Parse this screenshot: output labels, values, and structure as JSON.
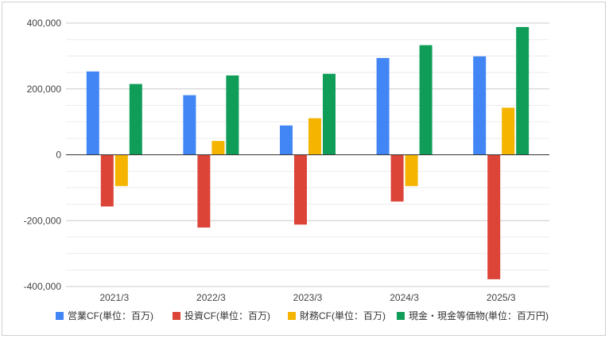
{
  "chart_data": {
    "type": "bar",
    "categories": [
      "2021/3",
      "2022/3",
      "2023/3",
      "2024/3",
      "2025/3"
    ],
    "series": [
      {
        "name": "営業CF(単位：百万)",
        "color": "#4285F4",
        "values": [
          253000,
          181000,
          89000,
          294000,
          299000
        ]
      },
      {
        "name": "投資CF(単位：百万)",
        "color": "#DB4437",
        "values": [
          -157000,
          -221000,
          -212000,
          -142000,
          -378000
        ]
      },
      {
        "name": "財務CF(単位：百万)",
        "color": "#F4B400",
        "values": [
          -95000,
          42000,
          111000,
          -95000,
          143000
        ]
      },
      {
        "name": "現金・現金等価物(単位：百万円)",
        "color": "#0F9D58",
        "values": [
          215000,
          241000,
          246000,
          333000,
          388000
        ]
      }
    ],
    "y_ticks": [
      "400,000",
      "200,000",
      "0",
      "-200,000",
      "-400,000"
    ],
    "ylim": [
      -400000,
      400000
    ],
    "grid": true,
    "legend_position": "bottom"
  }
}
